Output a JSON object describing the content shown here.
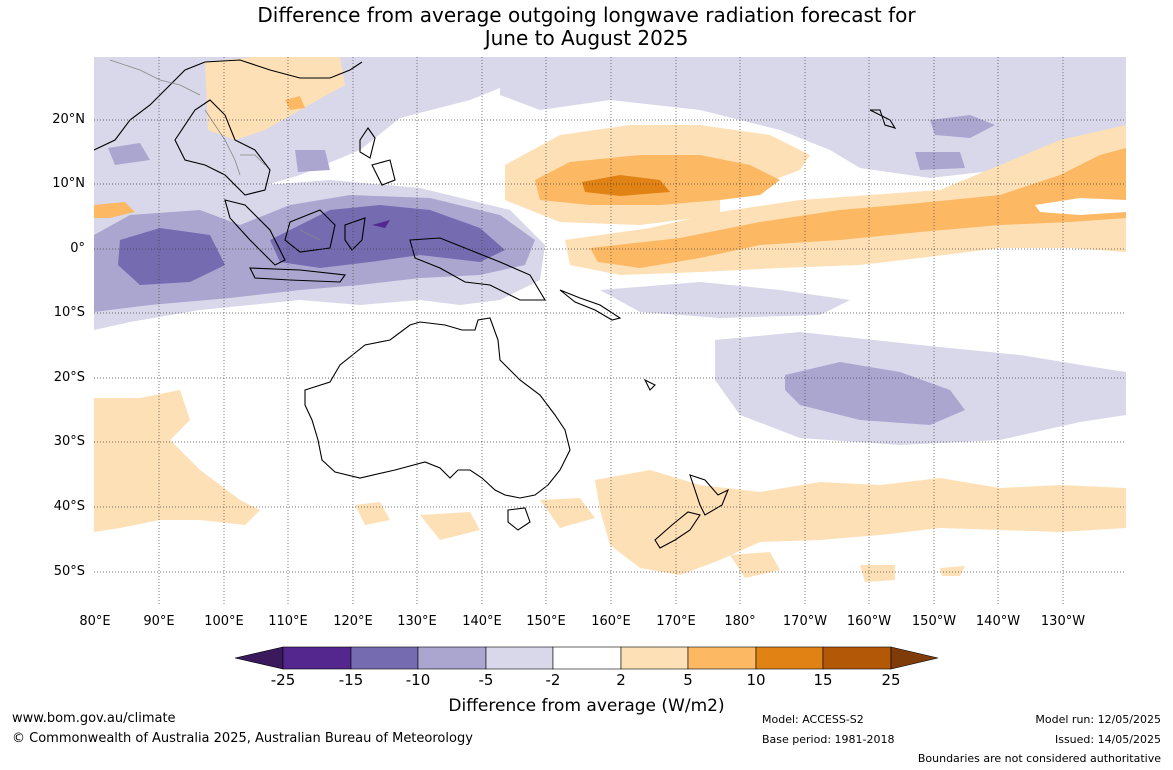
{
  "title": {
    "line1": "Difference from average outgoing longwave radiation forecast for",
    "line2": "June to August 2025"
  },
  "map": {
    "lat_labels": [
      "20°N",
      "10°N",
      "0°",
      "10°S",
      "20°S",
      "30°S",
      "40°S",
      "50°S"
    ],
    "lon_labels": [
      "80°E",
      "90°E",
      "100°E",
      "110°E",
      "120°E",
      "130°E",
      "140°E",
      "150°E",
      "160°E",
      "170°E",
      "180°",
      "170°W",
      "160°W",
      "150°W",
      "140°W",
      "130°W"
    ]
  },
  "colorbar": {
    "ticks": [
      "-25",
      "-15",
      "-10",
      "-5",
      "-2",
      "2",
      "5",
      "10",
      "15",
      "25"
    ],
    "colors": [
      "#3a1a5c",
      "#54278f",
      "#756bb1",
      "#aaa6d0",
      "#d8d8ea",
      "#ffffff",
      "#fde0b6",
      "#fdb863",
      "#e08214",
      "#b35806",
      "#7f3b08"
    ],
    "caption": "Difference from average (W/m2)"
  },
  "footer": {
    "website": "www.bom.gov.au/climate",
    "copyright": "© Commonwealth of Australia 2025, Australian Bureau of Meteorology",
    "model": "Model: ACCESS-S2",
    "base_period": "Base period: 1981-2018",
    "model_run": "Model run: 12/05/2025",
    "issued": "Issued: 14/05/2025",
    "disclaimer": "Boundaries are not considered authoritative"
  }
}
